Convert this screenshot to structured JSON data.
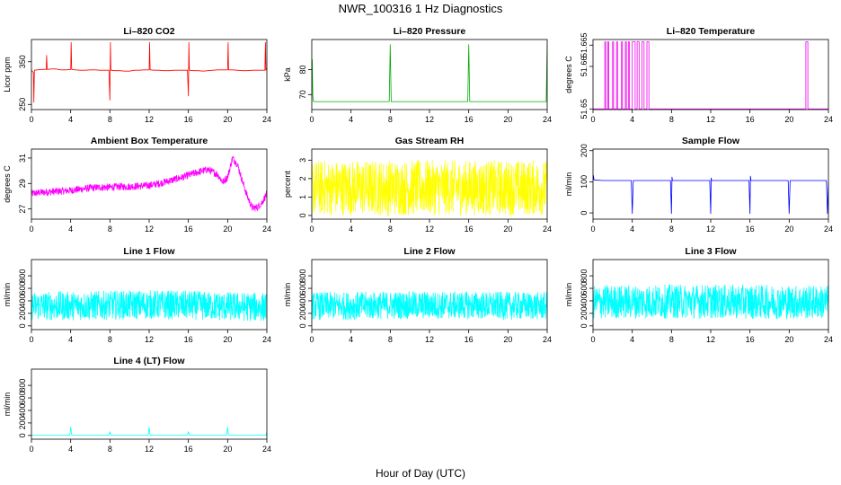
{
  "title": "NWR_100316  1 Hz Diagnostics",
  "xlabel": "Hour of Day (UTC)",
  "chart_data": [
    {
      "type": "line",
      "title": "Li–820 CO2",
      "ylabel": "Licor ppm",
      "color": "#ff0000",
      "xlim": [
        0,
        24
      ],
      "xticks": [
        0,
        4,
        8,
        12,
        16,
        20,
        24
      ],
      "ylim": [
        238,
        402
      ],
      "yticks": [
        250,
        350
      ],
      "series": [
        {
          "x": [
            0,
            0.2,
            0.25,
            0.3,
            1,
            1.5,
            1.55,
            1.6,
            2,
            2.5,
            3,
            3.5,
            4,
            4.05,
            4.1,
            4.5,
            5,
            5.5,
            6,
            6.5,
            7,
            7.5,
            7.9,
            8,
            8.05,
            8.1,
            8.5,
            9,
            9.5,
            10,
            10.5,
            11,
            11.5,
            12,
            12.05,
            12.1,
            12.5,
            13,
            13.5,
            14,
            14.5,
            15,
            15.5,
            15.9,
            16,
            16.05,
            16.1,
            16.5,
            17,
            17.5,
            18,
            18.5,
            19,
            19.5,
            20,
            20.05,
            20.1,
            20.5,
            21,
            21.5,
            22,
            22.5,
            23,
            23.5,
            23.8,
            23.85,
            23.9,
            24
          ],
          "y": [
            330,
            325,
            255,
            330,
            332,
            332,
            365,
            332,
            333,
            333,
            331,
            331,
            332,
            395,
            332,
            331,
            330,
            330,
            331,
            331,
            330,
            330,
            330,
            260,
            395,
            330,
            329,
            329,
            328,
            328,
            330,
            330,
            331,
            331,
            395,
            331,
            330,
            330,
            329,
            329,
            330,
            330,
            330,
            330,
            270,
            395,
            330,
            329,
            329,
            328,
            329,
            330,
            331,
            331,
            331,
            395,
            331,
            331,
            330,
            329,
            329,
            330,
            330,
            330,
            330,
            395,
            330,
            335
          ]
        }
      ]
    },
    {
      "type": "line",
      "title": "Li–820 Pressure",
      "ylabel": "kPa",
      "color": "#00aa00",
      "xlim": [
        0,
        24
      ],
      "xticks": [
        0,
        4,
        8,
        12,
        16,
        20,
        24
      ],
      "ylim": [
        64,
        92
      ],
      "yticks": [
        70,
        80
      ],
      "series": [
        {
          "x": [
            0,
            0.05,
            0.1,
            0.15,
            0.3,
            2,
            4,
            6,
            7.9,
            8,
            8.1,
            10,
            12,
            14,
            15.9,
            16,
            16.1,
            18,
            20,
            22,
            23.9,
            24
          ],
          "y": [
            68,
            84,
            70,
            67.3,
            67.2,
            67.2,
            67.2,
            67.2,
            67.2,
            90,
            67.2,
            67.2,
            67.2,
            67.2,
            67.2,
            90,
            67.2,
            67.2,
            67.2,
            67.2,
            67.2,
            90
          ]
        }
      ]
    },
    {
      "type": "line",
      "title": "Li–820 Temperature",
      "ylabel": "degrees C",
      "color": "#ee00ee",
      "xlim": [
        0,
        24
      ],
      "xticks": [
        0,
        4,
        8,
        12,
        16,
        20,
        24
      ],
      "ylim": [
        51.64985,
        51.66632
      ],
      "yticks": [
        51.65,
        51.66,
        51.665
      ],
      "series": [
        {
          "x": [
            0,
            1.2,
            1.2,
            1.3,
            1.3,
            1.5,
            1.5,
            1.6,
            1.6,
            2,
            2,
            2.1,
            2.1,
            2.4,
            2.4,
            2.5,
            2.5,
            2.9,
            2.9,
            3,
            3,
            3.3,
            3.3,
            3.4,
            3.4,
            3.6,
            3.6,
            3.7,
            3.7,
            4,
            4,
            4.3,
            4.3,
            4.5,
            4.5,
            4.7,
            4.7,
            5,
            5,
            5.2,
            5.2,
            5.5,
            5.5,
            5.7,
            5.7,
            21.7,
            21.7,
            21.9,
            21.9,
            24
          ],
          "y": [
            51.65,
            51.65,
            51.6658,
            51.6658,
            51.65,
            51.65,
            51.6658,
            51.6658,
            51.65,
            51.65,
            51.6658,
            51.6658,
            51.65,
            51.65,
            51.6658,
            51.6658,
            51.65,
            51.65,
            51.6658,
            51.6658,
            51.65,
            51.65,
            51.6658,
            51.6658,
            51.65,
            51.65,
            51.6658,
            51.6658,
            51.65,
            51.65,
            51.6658,
            51.6658,
            51.65,
            51.65,
            51.6658,
            51.6658,
            51.65,
            51.65,
            51.6658,
            51.6658,
            51.65,
            51.65,
            51.6658,
            51.6658,
            51.65,
            51.65,
            51.6658,
            51.6658,
            51.65,
            51.65
          ]
        }
      ]
    },
    {
      "type": "line",
      "title": "Ambient Box Temperature",
      "ylabel": "degrees C",
      "color": "#ff00ff",
      "xlim": [
        0,
        24
      ],
      "xticks": [
        0,
        4,
        8,
        12,
        16,
        20,
        24
      ],
      "ylim": [
        26.2,
        31.7
      ],
      "yticks": [
        27,
        29,
        31
      ],
      "series": [
        {
          "x": [
            0,
            1,
            2,
            3,
            4,
            5,
            6,
            7,
            8,
            9,
            10,
            11,
            12,
            13,
            14,
            15,
            16,
            17,
            18,
            19,
            19.5,
            20,
            20.5,
            21,
            21.5,
            22,
            22.5,
            23,
            23.5,
            24
          ],
          "y": [
            28.2,
            28.3,
            28.35,
            28.4,
            28.45,
            28.55,
            28.65,
            28.7,
            28.7,
            28.75,
            28.75,
            28.8,
            28.85,
            29,
            29.2,
            29.4,
            29.65,
            29.9,
            30.1,
            29.7,
            29.1,
            29.5,
            31,
            30.5,
            29.2,
            28,
            27.1,
            27.1,
            27.5,
            28.2
          ]
        }
      ],
      "noise": 0.28
    },
    {
      "type": "line",
      "title": "Gas Stream RH",
      "ylabel": "percent",
      "color": "#ffff00",
      "xlim": [
        0,
        24
      ],
      "xticks": [
        0,
        4,
        8,
        12,
        16,
        20,
        24
      ],
      "ylim": [
        -0.2,
        3.6
      ],
      "yticks": [
        0,
        1,
        2,
        3
      ],
      "series": [
        {
          "x": [
            0,
            4,
            8,
            12,
            16,
            20,
            24
          ],
          "y": [
            1.5,
            1.5,
            1.5,
            1.5,
            1.5,
            1.5,
            1.5
          ]
        }
      ],
      "noise": 1.5
    },
    {
      "type": "line",
      "title": "Sample Flow",
      "ylabel": "ml/min",
      "color": "#0000ff",
      "xlim": [
        0,
        24
      ],
      "xticks": [
        0,
        4,
        8,
        12,
        16,
        20,
        24
      ],
      "ylim": [
        -20,
        205
      ],
      "yticks": [
        0,
        100,
        200
      ],
      "series": [
        {
          "x": [
            0,
            0.05,
            0.1,
            1,
            2,
            3,
            3.9,
            4,
            4.1,
            5,
            6,
            7.9,
            8,
            8.05,
            8.1,
            9,
            11.9,
            12,
            12.05,
            12.1,
            13,
            15.9,
            16,
            16.05,
            16.1,
            17,
            19.9,
            20,
            20.1,
            21,
            23,
            23.8,
            23.9,
            24
          ],
          "y": [
            105,
            120,
            106,
            104,
            104,
            104,
            104,
            -2,
            104,
            104,
            104,
            104,
            -2,
            115,
            104,
            104,
            104,
            -2,
            112,
            104,
            104,
            104,
            -2,
            118,
            104,
            104,
            104,
            -2,
            104,
            104,
            104,
            104,
            -2,
            100
          ]
        }
      ]
    },
    {
      "type": "line",
      "title": "Line 1 Flow",
      "ylabel": "ml/min",
      "color": "#00ffff",
      "xlim": [
        0,
        24
      ],
      "xticks": [
        0,
        4,
        8,
        12,
        16,
        20,
        24
      ],
      "ylim": [
        -60,
        1060
      ],
      "yticks": [
        0,
        200,
        400,
        600,
        800
      ],
      "series": [
        {
          "x": [
            0,
            4,
            8,
            12,
            16,
            20,
            24
          ],
          "y": [
            320,
            320,
            330,
            340,
            330,
            310,
            300
          ]
        }
      ],
      "noise": 230
    },
    {
      "type": "line",
      "title": "Line 2 Flow",
      "ylabel": "ml/min",
      "color": "#00ffff",
      "xlim": [
        0,
        24
      ],
      "xticks": [
        0,
        4,
        8,
        12,
        16,
        20,
        24
      ],
      "ylim": [
        -60,
        1060
      ],
      "yticks": [
        0,
        200,
        400,
        600,
        800
      ],
      "series": [
        {
          "x": [
            0,
            4,
            8,
            12,
            16,
            20,
            24
          ],
          "y": [
            320,
            320,
            330,
            330,
            330,
            320,
            320
          ]
        }
      ],
      "noise": 220
    },
    {
      "type": "line",
      "title": "Line 3 Flow",
      "ylabel": "ml/min",
      "color": "#00ffff",
      "xlim": [
        0,
        24
      ],
      "xticks": [
        0,
        4,
        8,
        12,
        16,
        20,
        24
      ],
      "ylim": [
        -60,
        1060
      ],
      "yticks": [
        0,
        200,
        400,
        600,
        800
      ],
      "series": [
        {
          "x": [
            0,
            4,
            8,
            12,
            16,
            20,
            24
          ],
          "y": [
            380,
            385,
            390,
            390,
            385,
            380,
            380
          ]
        }
      ],
      "noise": 270
    },
    {
      "type": "line",
      "title": "Line 4 (LT) Flow",
      "ylabel": "ml/min",
      "color": "#00ffff",
      "xlim": [
        0,
        24
      ],
      "xticks": [
        0,
        4,
        8,
        12,
        16,
        20,
        24
      ],
      "ylim": [
        -60,
        1060
      ],
      "yticks": [
        0,
        200,
        400,
        600,
        800
      ],
      "series": [
        {
          "x": [
            0,
            3.9,
            4,
            4.1,
            7.9,
            8,
            8.1,
            11.9,
            12,
            12.1,
            15.9,
            16,
            16.1,
            19.9,
            20,
            20.1,
            23.9,
            24,
            24
          ],
          "y": [
            5,
            5,
            130,
            5,
            5,
            60,
            5,
            5,
            130,
            5,
            5,
            60,
            5,
            5,
            130,
            5,
            5,
            60,
            5
          ]
        }
      ]
    }
  ]
}
